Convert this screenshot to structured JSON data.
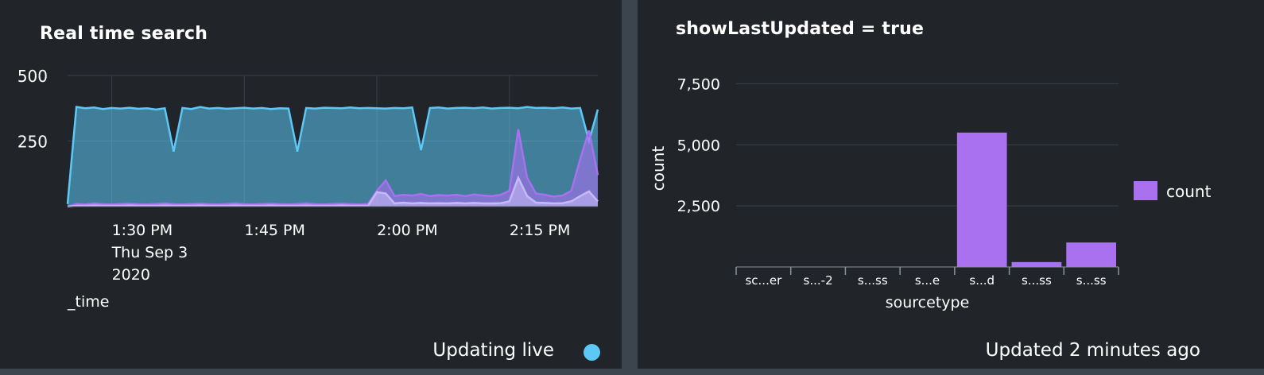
{
  "panels": {
    "left": {
      "title": "Real time search",
      "status_text": "Updating live",
      "status_dot_color": "#5bc8f5"
    },
    "right": {
      "title": "showLastUpdated = true",
      "status_text": "Updated 2 minutes ago"
    }
  },
  "chart_data": [
    {
      "type": "area",
      "xlabel": "_time",
      "ylabel": "",
      "ylim": [
        0,
        500
      ],
      "y_ticks": [
        "250",
        "500"
      ],
      "x_ticks": [
        {
          "label": "1:30 PM",
          "sub": [
            "Thu Sep 3",
            "2020"
          ],
          "t": 5
        },
        {
          "label": "1:45 PM",
          "t": 20
        },
        {
          "label": "2:00 PM",
          "t": 35
        },
        {
          "label": "2:15 PM",
          "t": 50
        }
      ],
      "x_start": "1:25 PM",
      "grid": true,
      "series": [
        {
          "color": "#5bc8f5",
          "x": [
            0,
            1,
            2,
            3,
            4,
            5,
            6,
            7,
            8,
            9,
            10,
            11,
            12,
            13,
            14,
            15,
            16,
            17,
            18,
            19,
            20,
            21,
            22,
            23,
            24,
            25,
            26,
            27,
            28,
            29,
            30,
            31,
            32,
            33,
            34,
            35,
            36,
            37,
            38,
            39,
            40,
            41,
            42,
            43,
            44,
            45,
            46,
            47,
            48,
            49,
            50,
            51,
            52,
            53,
            54,
            55,
            56,
            57,
            58,
            59,
            60
          ],
          "values": [
            10,
            380,
            375,
            378,
            372,
            376,
            374,
            377,
            373,
            375,
            370,
            375,
            210,
            376,
            372,
            380,
            374,
            376,
            373,
            375,
            377,
            374,
            376,
            372,
            375,
            374,
            210,
            376,
            374,
            377,
            376,
            375,
            378,
            375,
            376,
            375,
            374,
            376,
            375,
            378,
            215,
            376,
            378,
            374,
            376,
            377,
            375,
            378,
            374,
            376,
            377,
            375,
            380,
            376,
            377,
            375,
            378,
            374,
            376,
            250,
            370
          ]
        },
        {
          "color": "#a970f0",
          "x": [
            0,
            1,
            2,
            3,
            4,
            5,
            6,
            7,
            8,
            9,
            10,
            11,
            12,
            13,
            14,
            15,
            16,
            17,
            18,
            19,
            20,
            21,
            22,
            23,
            24,
            25,
            26,
            27,
            28,
            29,
            30,
            31,
            32,
            33,
            34,
            35,
            36,
            37,
            38,
            39,
            40,
            41,
            42,
            43,
            44,
            45,
            46,
            47,
            48,
            49,
            50,
            51,
            52,
            53,
            54,
            55,
            56,
            57,
            58,
            59,
            60
          ],
          "values": [
            0,
            10,
            8,
            12,
            9,
            8,
            10,
            11,
            9,
            8,
            10,
            12,
            9,
            8,
            10,
            11,
            9,
            8,
            10,
            12,
            9,
            8,
            10,
            11,
            9,
            8,
            10,
            12,
            9,
            8,
            10,
            11,
            9,
            8,
            10,
            60,
            100,
            40,
            45,
            42,
            48,
            40,
            44,
            42,
            45,
            40,
            46,
            42,
            40,
            45,
            60,
            295,
            110,
            50,
            45,
            38,
            42,
            60,
            180,
            290,
            120
          ]
        },
        {
          "color": "#c8b8f8",
          "x": [
            0,
            1,
            2,
            3,
            4,
            5,
            6,
            7,
            8,
            9,
            10,
            11,
            12,
            13,
            14,
            15,
            16,
            17,
            18,
            19,
            20,
            21,
            22,
            23,
            24,
            25,
            26,
            27,
            28,
            29,
            30,
            31,
            32,
            33,
            34,
            35,
            36,
            37,
            38,
            39,
            40,
            41,
            42,
            43,
            44,
            45,
            46,
            47,
            48,
            49,
            50,
            51,
            52,
            53,
            54,
            55,
            56,
            57,
            58,
            59,
            60
          ],
          "values": [
            0,
            3,
            3,
            4,
            3,
            3,
            3,
            4,
            3,
            3,
            3,
            4,
            3,
            3,
            3,
            4,
            3,
            3,
            3,
            4,
            3,
            3,
            3,
            4,
            3,
            3,
            3,
            4,
            3,
            3,
            3,
            4,
            3,
            3,
            3,
            55,
            50,
            12,
            15,
            12,
            14,
            12,
            13,
            12,
            14,
            12,
            14,
            12,
            12,
            13,
            20,
            110,
            40,
            15,
            14,
            12,
            13,
            20,
            40,
            58,
            20
          ]
        }
      ]
    },
    {
      "type": "bar",
      "categories": [
        "sc...er",
        "s...-2",
        "s...ss",
        "s...e",
        "s...d",
        "s...ss",
        "s...ss"
      ],
      "values": [
        0,
        0,
        0,
        0,
        5500,
        200,
        1000
      ],
      "xlabel": "sourcetype",
      "ylabel": "count",
      "ylim": [
        0,
        8000
      ],
      "y_ticks": [
        {
          "value": 2500,
          "label": "2,500"
        },
        {
          "value": 5000,
          "label": "5,000"
        },
        {
          "value": 7500,
          "label": "7,500"
        }
      ],
      "legend": {
        "entries": [
          "count"
        ],
        "placement": "right"
      },
      "bar_color": "#a970f0",
      "grid": true
    }
  ]
}
